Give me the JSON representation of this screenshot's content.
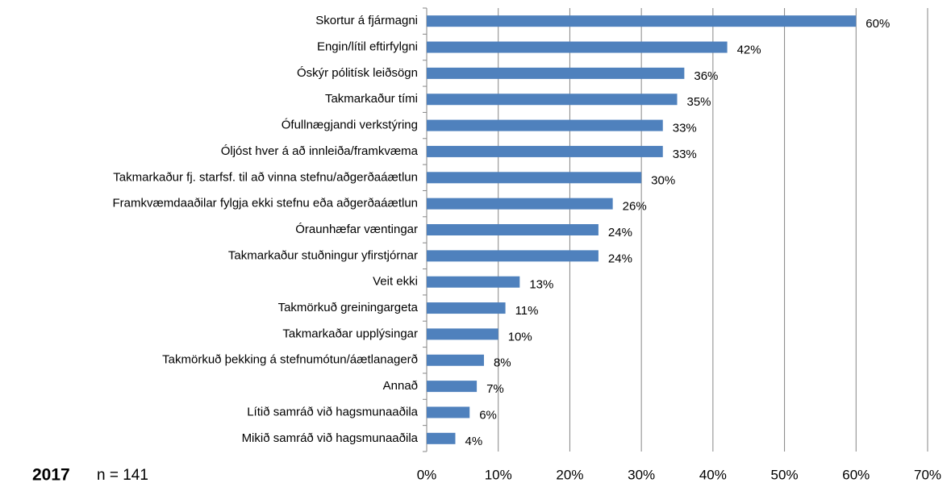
{
  "chart_data": {
    "type": "bar",
    "orientation": "horizontal",
    "categories": [
      "Skortur á fjármagni",
      "Engin/lítil eftirfylgni",
      "Óskýr pólitísk leiðsögn",
      "Takmarkaður tími",
      "Ófullnægjandi verkstýring",
      "Óljóst hver á að innleiða/framkvæma",
      "Takmarkaður fj. starfsf. til að vinna stefnu/aðgerðaáætlun",
      "Framkvæmdaaðilar fylgja ekki stefnu eða aðgerðaáætlun",
      "Óraunhæfar væntingar",
      "Takmarkaður stuðningur yfirstjórnar",
      "Veit ekki",
      "Takmörkuð greiningargeta",
      "Takmarkaðar upplýsingar",
      "Takmörkuð þekking á stefnumótun/áætlanagerð",
      "Annað",
      "Lítið samráð við hagsmunaaðila",
      "Mikið samráð við hagsmunaaðila"
    ],
    "values": [
      60,
      42,
      36,
      35,
      33,
      33,
      30,
      26,
      24,
      24,
      13,
      11,
      10,
      8,
      7,
      6,
      4
    ],
    "value_labels": [
      "60%",
      "42%",
      "36%",
      "35%",
      "33%",
      "33%",
      "30%",
      "26%",
      "24%",
      "24%",
      "13%",
      "11%",
      "10%",
      "8%",
      "7%",
      "6%",
      "4%"
    ],
    "color": "#4f81bd",
    "xlim": [
      0,
      70
    ],
    "xticks": [
      {
        "value": 0,
        "label": "0%"
      },
      {
        "value": 10,
        "label": "10%"
      },
      {
        "value": 20,
        "label": "20%"
      },
      {
        "value": 30,
        "label": "30%"
      },
      {
        "value": 40,
        "label": "40%"
      },
      {
        "value": 50,
        "label": "50%"
      },
      {
        "value": 60,
        "label": "60%"
      },
      {
        "value": 70,
        "label": "70%"
      }
    ],
    "grid": true,
    "annotations": [
      "2017",
      "n = 141"
    ]
  }
}
